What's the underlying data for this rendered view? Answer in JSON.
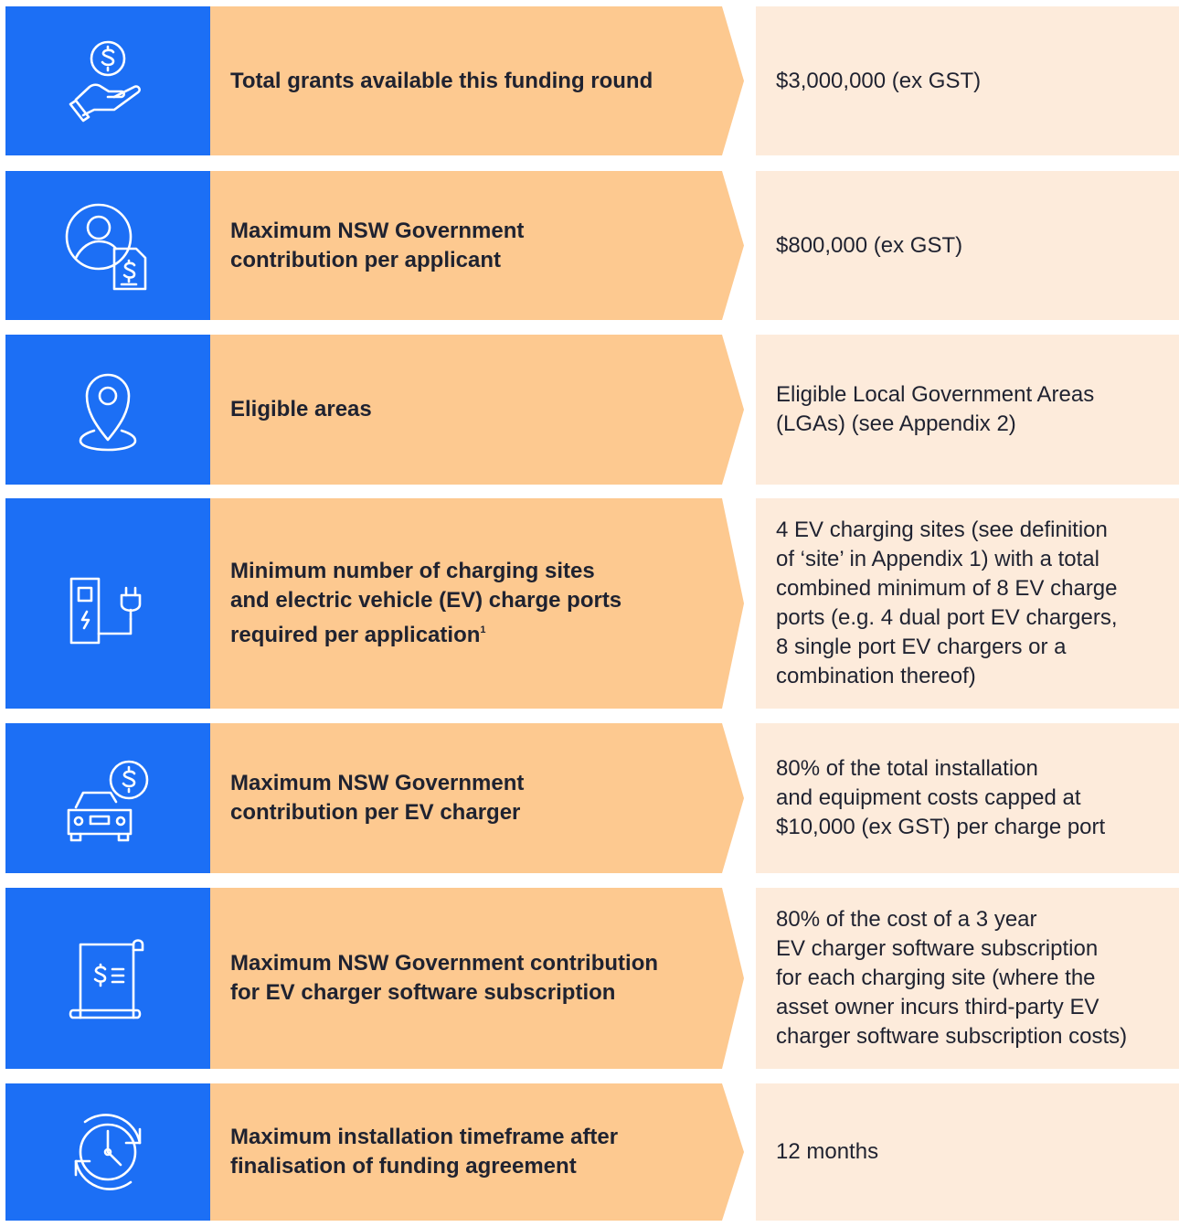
{
  "rows": [
    {
      "label": [
        "Total grants available this funding round"
      ],
      "value": [
        "$3,000,000 (ex GST)"
      ]
    },
    {
      "label": [
        "Maximum NSW Government",
        "contribution per applicant"
      ],
      "value": [
        "$800,000 (ex GST)"
      ]
    },
    {
      "label": [
        "Eligible areas"
      ],
      "value": [
        "Eligible Local Government Areas",
        "(LGAs) (see Appendix 2)"
      ]
    },
    {
      "label": [
        "Minimum number of charging sites",
        "and electric vehicle (EV) charge ports",
        "required per application"
      ],
      "footnote": "1",
      "value": [
        "4 EV charging sites (see definition",
        "of ‘site’ in Appendix 1) with a total",
        "combined minimum of 8 EV charge",
        "ports (e.g. 4 dual port EV chargers,",
        "8 single port EV chargers or a",
        "combination thereof)"
      ]
    },
    {
      "label": [
        "Maximum NSW Government",
        "contribution per EV charger"
      ],
      "value": [
        "80% of the total installation",
        "and equipment costs capped at",
        "$10,000 (ex GST) per charge port"
      ]
    },
    {
      "label": [
        "Maximum NSW Government contribution",
        "for EV charger software subscription"
      ],
      "value": [
        "80% of the cost of a 3 year",
        "EV charger software subscription",
        "for each charging site (where the",
        "asset owner incurs third-party EV",
        "charger software subscription costs)"
      ]
    },
    {
      "label": [
        "Maximum installation timeframe after",
        "finalisation of funding agreement"
      ],
      "value": [
        "12 months"
      ]
    }
  ]
}
